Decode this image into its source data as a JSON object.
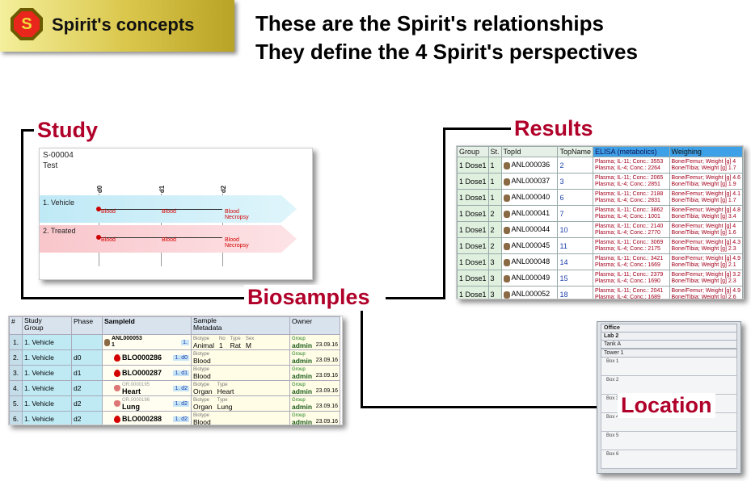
{
  "banner": {
    "logo_letter": "S",
    "title": "Spirit's concepts"
  },
  "headlines": [
    "These are the Spirit's relationships",
    "They define the 4 Spirit's perspectives"
  ],
  "labels": {
    "study": "Study",
    "results": "Results",
    "biosamples": "Biosamples",
    "location": "Location"
  },
  "study": {
    "id": "S-00004",
    "name": "Test",
    "phases": [
      "d0",
      "d1",
      "d2"
    ],
    "groups": [
      {
        "name": "1. Vehicle",
        "samples": [
          "Blood",
          "Blood",
          "Blood\nNecropsy"
        ]
      },
      {
        "name": "2. Treated",
        "samples": [
          "Blood",
          "Blood",
          "Blood\nNecropsy"
        ]
      }
    ]
  },
  "results": {
    "headers": [
      "Group",
      "St.",
      "TopId",
      "TopName",
      "ELISA (metabolics)",
      "Weighing"
    ],
    "rows": [
      {
        "group": "1 Dose1",
        "st": "1",
        "topid": "ANL000036",
        "topname": "2",
        "elisa1": "Plasma; IL-11; Conc.: 3553",
        "elisa2": "Plasma; IL-4; Conc.: 2264",
        "w1": "Bone/Femur; Weight [g]  4",
        "w2": "Bone/Tibia; Weight [g]  1.7"
      },
      {
        "group": "1 Dose1",
        "st": "1",
        "topid": "ANL000037",
        "topname": "3",
        "elisa1": "Plasma; IL-11; Conc.: 2065",
        "elisa2": "Plasma; IL-4; Conc.: 2851",
        "w1": "Bone/Femur; Weight [g]  4.6",
        "w2": "Bone/Tibia; Weight [g]  1.9"
      },
      {
        "group": "1 Dose1",
        "st": "1",
        "topid": "ANL000040",
        "topname": "6",
        "elisa1": "Plasma; IL-11; Conc.: 2188",
        "elisa2": "Plasma; IL-4; Conc.: 2831",
        "w1": "Bone/Femur; Weight [g]  4.1",
        "w2": "Bone/Tibia; Weight [g]  1.7"
      },
      {
        "group": "1 Dose1",
        "st": "2",
        "topid": "ANL000041",
        "topname": "7",
        "elisa1": "Plasma; IL-11; Conc.: 3862",
        "elisa2": "Plasma; IL-4; Conc.: 1001",
        "w1": "Bone/Femur; Weight [g]  4.8",
        "w2": "Bone/Tibia; Weight [g]  3.4"
      },
      {
        "group": "1 Dose1",
        "st": "2",
        "topid": "ANL000044",
        "topname": "10",
        "elisa1": "Plasma; IL-11; Conc.: 2140",
        "elisa2": "Plasma; IL-4; Conc.: 2770",
        "w1": "Bone/Femur; Weight [g]  4",
        "w2": "Bone/Tibia; Weight [g]  1.6"
      },
      {
        "group": "1 Dose1",
        "st": "2",
        "topid": "ANL000045",
        "topname": "11",
        "elisa1": "Plasma; IL-11; Conc.: 3069",
        "elisa2": "Plasma; IL-4; Conc.: 2175",
        "w1": "Bone/Femur; Weight [g]  4.3",
        "w2": "Bone/Tibia; Weight [g]  2.3"
      },
      {
        "group": "1 Dose1",
        "st": "3",
        "topid": "ANL000048",
        "topname": "14",
        "elisa1": "Plasma; IL-11; Conc.: 3421",
        "elisa2": "Plasma; IL-4; Conc.: 1669",
        "w1": "Bone/Femur; Weight [g]  4.9",
        "w2": "Bone/Tibia; Weight [g]  2.1"
      },
      {
        "group": "1 Dose1",
        "st": "3",
        "topid": "ANL000049",
        "topname": "15",
        "elisa1": "Plasma; IL-11; Conc.: 2379",
        "elisa2": "Plasma; IL-4; Conc.: 1690",
        "w1": "Bone/Femur; Weight [g]  3.2",
        "w2": "Bone/Tibia; Weight [g]  2.3"
      },
      {
        "group": "1 Dose1",
        "st": "3",
        "topid": "ANL000052",
        "topname": "18",
        "elisa1": "Plasma; IL-11; Conc.: 2041",
        "elisa2": "Plasma; IL-4; Conc.: 1689",
        "w1": "Bone/Femur; Weight [g]  4.9",
        "w2": "Bone/Tibia; Weight [g]  2.6"
      }
    ]
  },
  "biosamples": {
    "headers": [
      "#",
      "Study\nGroup",
      "Phase",
      "SampleId",
      "Sample\nMetadata",
      "Owner"
    ],
    "rows": [
      {
        "num": "1.",
        "group": "1. Vehicle",
        "phase": "",
        "sampleid": "ANL000053\n1",
        "parent": "",
        "badge": "1.",
        "meta": [
          [
            "Biotype",
            "Animal"
          ],
          [
            "No",
            "1"
          ],
          [
            "Type",
            "Rat"
          ],
          [
            "Sex",
            "M"
          ]
        ],
        "owner_label": "Group",
        "owner": "admin",
        "date": "23.09.16"
      },
      {
        "num": "2.",
        "group": "1. Vehicle",
        "phase": "d0",
        "sampleid": "BLO000286",
        "parent": "",
        "badge": "1. d0",
        "meta": [
          [
            "Biotype",
            "Blood"
          ]
        ],
        "owner_label": "Group",
        "owner": "admin",
        "date": "23.09.16"
      },
      {
        "num": "3.",
        "group": "1. Vehicle",
        "phase": "d1",
        "sampleid": "BLO000287",
        "parent": "",
        "badge": "1. d1",
        "meta": [
          [
            "Biotype",
            "Blood"
          ]
        ],
        "owner_label": "Group",
        "owner": "admin",
        "date": "23.09.16"
      },
      {
        "num": "4.",
        "group": "1. Vehicle",
        "phase": "d2",
        "sampleid": "Heart",
        "parent": "OR.0000195",
        "badge": "1. d2",
        "meta": [
          [
            "Biotype",
            "Organ"
          ],
          [
            "Type",
            "Heart"
          ]
        ],
        "owner_label": "Group",
        "owner": "admin",
        "date": "23.09.16"
      },
      {
        "num": "5.",
        "group": "1. Vehicle",
        "phase": "d2",
        "sampleid": "Lung",
        "parent": "OR.0000196",
        "badge": "1. d2",
        "meta": [
          [
            "Biotype",
            "Organ"
          ],
          [
            "Type",
            "Lung"
          ]
        ],
        "owner_label": "Group",
        "owner": "admin",
        "date": "23.09.16"
      },
      {
        "num": "6.",
        "group": "1. Vehicle",
        "phase": "d2",
        "sampleid": "BLO000288",
        "parent": "",
        "badge": "1. d2",
        "meta": [
          [
            "Biotype",
            "Blood"
          ]
        ],
        "owner_label": "Group",
        "owner": "admin",
        "date": "23.09.16"
      }
    ]
  },
  "location": {
    "path": [
      "Office",
      "Lab 2",
      "Tank A",
      "Tower 1"
    ],
    "boxes": [
      "Box 1",
      "Box 2",
      "Box 3",
      "Box 4",
      "Box 5",
      "Box 6"
    ]
  },
  "colors": {
    "label_red": "#b0002a",
    "vehicle_band": "#cdeff9",
    "treated_band": "#fad2d6",
    "sample_red": "#d40000"
  }
}
